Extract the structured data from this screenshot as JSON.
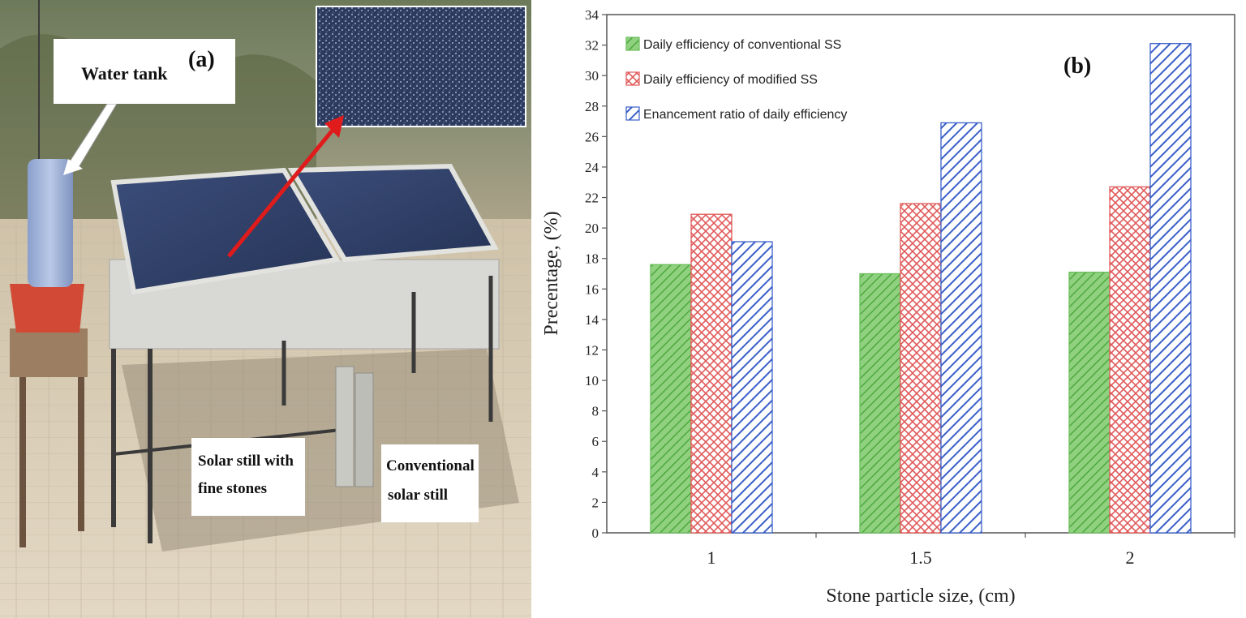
{
  "photo": {
    "panel_label": "(a)",
    "labels": {
      "water_tank": "Water tank",
      "solar_still_fine_line1": "Solar still with",
      "solar_still_fine_line2": "fine stones",
      "conventional_line1": "Conventional",
      "conventional_line2": "solar still"
    },
    "colors": {
      "glass": "#2f3f68",
      "frame": "#d8d8d4",
      "ground": "#d9cdb8",
      "arrow": "#e01b1b",
      "tank": "#9aaed6",
      "basin": "#d24a36"
    }
  },
  "chart_data": {
    "type": "bar",
    "panel_label": "(b)",
    "title": "",
    "xlabel": "Stone particle size, (cm)",
    "ylabel": "Precentage, (%)",
    "categories": [
      "1",
      "1.5",
      "2"
    ],
    "ylim": [
      0,
      34
    ],
    "yticks": [
      0,
      2,
      4,
      6,
      8,
      10,
      12,
      14,
      16,
      18,
      20,
      22,
      24,
      26,
      28,
      30,
      32,
      34
    ],
    "series": [
      {
        "name": "Daily efficiency of conventional SS",
        "values": [
          17.6,
          17.0,
          17.1
        ],
        "color": "#6dbf5e",
        "pattern": "diagonal"
      },
      {
        "name": "Daily efficiency of modified SS",
        "values": [
          20.9,
          21.6,
          22.7
        ],
        "color": "#e05a5a",
        "pattern": "crosshatch"
      },
      {
        "name": "Enancement ratio of daily efficiency",
        "values": [
          19.1,
          26.9,
          32.1
        ],
        "color": "#3a5fc8",
        "pattern": "stripes"
      }
    ],
    "legend_position": "top-left",
    "grid": false
  }
}
